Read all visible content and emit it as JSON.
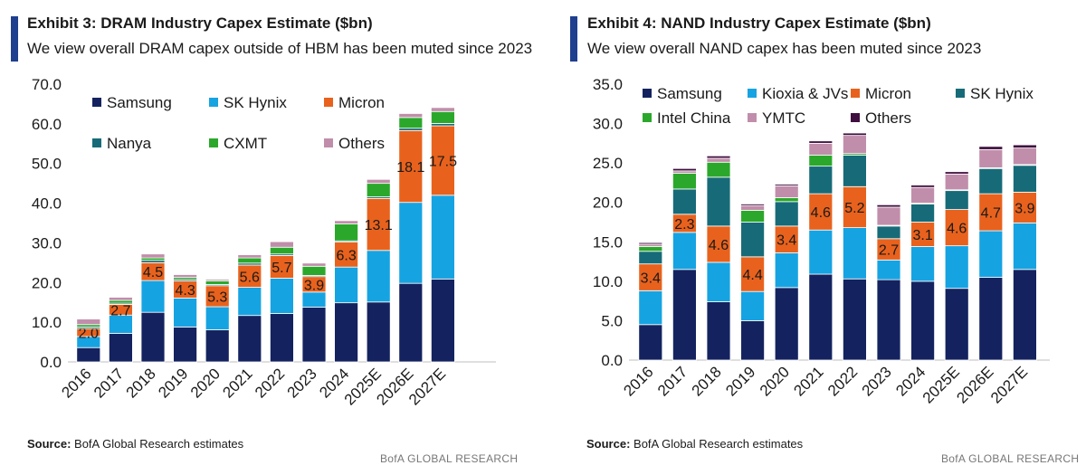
{
  "chart_data": [
    {
      "type": "bar",
      "stacked": true,
      "exhibit": "Exhibit 3: DRAM Industry Capex Estimate ($bn)",
      "subtitle": "We view overall DRAM capex outside of HBM has been muted since 2023",
      "categories": [
        "2016",
        "2017",
        "2018",
        "2019",
        "2020",
        "2021",
        "2022",
        "2023",
        "2024",
        "2025E",
        "2026E",
        "2027E"
      ],
      "ylim": [
        0,
        70
      ],
      "yticks": [
        "0.0",
        "10.0",
        "20.0",
        "30.0",
        "40.0",
        "50.0",
        "60.0",
        "70.0"
      ],
      "series": [
        {
          "name": "Samsung",
          "color": "#14235f",
          "values": [
            3.6,
            7.2,
            12.5,
            8.8,
            8.1,
            11.7,
            12.2,
            13.8,
            14.9,
            15.1,
            19.8,
            20.9
          ]
        },
        {
          "name": "SK Hynix",
          "color": "#16a3e2",
          "values": [
            2.8,
            4.6,
            8.0,
            7.3,
            5.8,
            7.1,
            8.9,
            3.8,
            9.0,
            13.0,
            20.4,
            21.1
          ]
        },
        {
          "name": "Micron",
          "color": "#e8621d",
          "values": [
            2.0,
            2.7,
            4.5,
            4.3,
            5.3,
            5.6,
            5.7,
            3.9,
            6.3,
            13.1,
            18.1,
            17.5
          ]
        },
        {
          "name": "Nanya",
          "color": "#176b78",
          "values": [
            0.4,
            0.3,
            0.6,
            0.4,
            0.3,
            0.5,
            0.4,
            0.3,
            0.3,
            0.4,
            0.6,
            0.6
          ]
        },
        {
          "name": "CXMT",
          "color": "#2ba82b",
          "values": [
            0.6,
            0.7,
            0.6,
            0.5,
            0.9,
            1.3,
            1.7,
            2.3,
            4.3,
            3.4,
            2.7,
            3.0
          ]
        },
        {
          "name": "Others",
          "color": "#c08eaa",
          "values": [
            1.4,
            0.8,
            1.0,
            0.7,
            0.4,
            0.8,
            1.4,
            0.8,
            0.8,
            1.0,
            1.0,
            1.0
          ]
        }
      ],
      "data_labels": {
        "series": "Micron",
        "values": [
          "2.0",
          "2.7",
          "4.5",
          "4.3",
          "5.3",
          "5.6",
          "5.7",
          "3.9",
          "6.3",
          "13.1",
          "18.1",
          "17.5"
        ]
      },
      "legend": [
        "Samsung",
        "SK Hynix",
        "Micron",
        "Nanya",
        "CXMT",
        "Others"
      ],
      "legend_position": "top-left",
      "source_label": "Source:",
      "source_text": " BofA Global Research estimates",
      "brand": "BofA GLOBAL RESEARCH"
    },
    {
      "type": "bar",
      "stacked": true,
      "exhibit": "Exhibit 4: NAND Industry Capex Estimate ($bn)",
      "subtitle": "We view overall NAND capex has been muted since 2023",
      "categories": [
        "2016",
        "2017",
        "2018",
        "2019",
        "2020",
        "2021",
        "2022",
        "2023",
        "2024",
        "2025E",
        "2026E",
        "2027E"
      ],
      "ylim": [
        0,
        35
      ],
      "yticks": [
        "0.0",
        "5.0",
        "10.0",
        "15.0",
        "20.0",
        "25.0",
        "30.0",
        "35.0"
      ],
      "series": [
        {
          "name": "Samsung",
          "color": "#14235f",
          "values": [
            4.5,
            11.5,
            7.4,
            5.0,
            9.2,
            10.9,
            10.3,
            10.2,
            10.0,
            9.1,
            10.5,
            11.5
          ]
        },
        {
          "name": "Kioxia & JVs",
          "color": "#16a3e2",
          "values": [
            4.3,
            4.7,
            5.0,
            3.7,
            4.4,
            5.6,
            6.5,
            2.5,
            4.4,
            5.4,
            5.9,
            5.9
          ]
        },
        {
          "name": "Micron",
          "color": "#e8621d",
          "values": [
            3.4,
            2.3,
            4.6,
            4.4,
            3.4,
            4.6,
            5.2,
            2.7,
            3.1,
            4.6,
            4.7,
            3.9
          ]
        },
        {
          "name": "SK Hynix",
          "color": "#176b78",
          "values": [
            1.6,
            3.2,
            6.2,
            4.4,
            3.1,
            3.5,
            4.0,
            1.6,
            2.3,
            2.4,
            3.2,
            3.4
          ]
        },
        {
          "name": "Intel China",
          "color": "#2ba82b",
          "values": [
            0.6,
            2.0,
            1.9,
            1.5,
            0.5,
            1.4,
            0.2,
            0.1,
            0.1,
            0.1,
            0.1,
            0.1
          ]
        },
        {
          "name": "YMTC",
          "color": "#c08eaa",
          "values": [
            0.3,
            0.3,
            0.5,
            0.6,
            1.5,
            1.5,
            2.3,
            2.3,
            2.0,
            2.0,
            2.3,
            2.1
          ]
        },
        {
          "name": "Others",
          "color": "#3f0f3f",
          "values": [
            0.2,
            0.3,
            0.3,
            0.2,
            0.2,
            0.3,
            0.3,
            0.3,
            0.3,
            0.3,
            0.4,
            0.4
          ]
        }
      ],
      "data_labels": {
        "series": "Micron",
        "values": [
          "3.4",
          "2.3",
          "4.6",
          "4.4",
          "3.4",
          "4.6",
          "5.2",
          "2.7",
          "3.1",
          "4.6",
          "4.7",
          "3.9"
        ]
      },
      "legend": [
        "Samsung",
        "Kioxia & JVs",
        "Micron",
        "SK Hynix",
        "Intel China",
        "YMTC",
        "Others"
      ],
      "legend_position": "top-left",
      "source_label": "Source:",
      "source_text": " BofA Global Research estimates",
      "brand": "BofA GLOBAL RESEARCH"
    }
  ]
}
